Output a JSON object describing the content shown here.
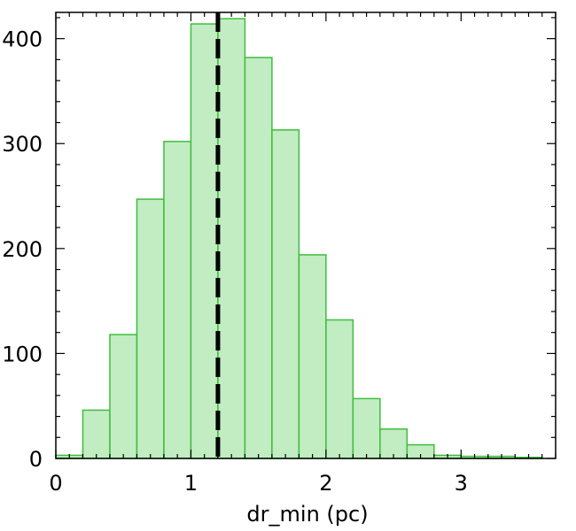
{
  "chart_data": {
    "type": "bar",
    "subtype": "histogram",
    "title": "",
    "xlabel": "dr_min (pc)",
    "ylabel": "",
    "xlim": [
      0,
      3.7
    ],
    "ylim": [
      0,
      425
    ],
    "x_ticks": [
      "0",
      "1",
      "2",
      "3"
    ],
    "y_ticks": [
      "0",
      "100",
      "200",
      "300",
      "400"
    ],
    "bin_width": 0.2,
    "bin_edges": [
      0.0,
      0.2,
      0.4,
      0.6,
      0.8,
      1.0,
      1.2,
      1.4,
      1.6,
      1.8,
      2.0,
      2.2,
      2.4,
      2.6,
      2.8,
      3.0,
      3.2,
      3.4,
      3.6
    ],
    "values": [
      3,
      46,
      118,
      247,
      302,
      414,
      419,
      382,
      313,
      194,
      132,
      57,
      28,
      13,
      3,
      2,
      2,
      1
    ],
    "reference_line": {
      "x": 1.2,
      "style": "dashed",
      "color": "#000000"
    },
    "bar_fill": "#c2ecc2",
    "bar_edge": "#3cbf3c",
    "grid": false
  }
}
